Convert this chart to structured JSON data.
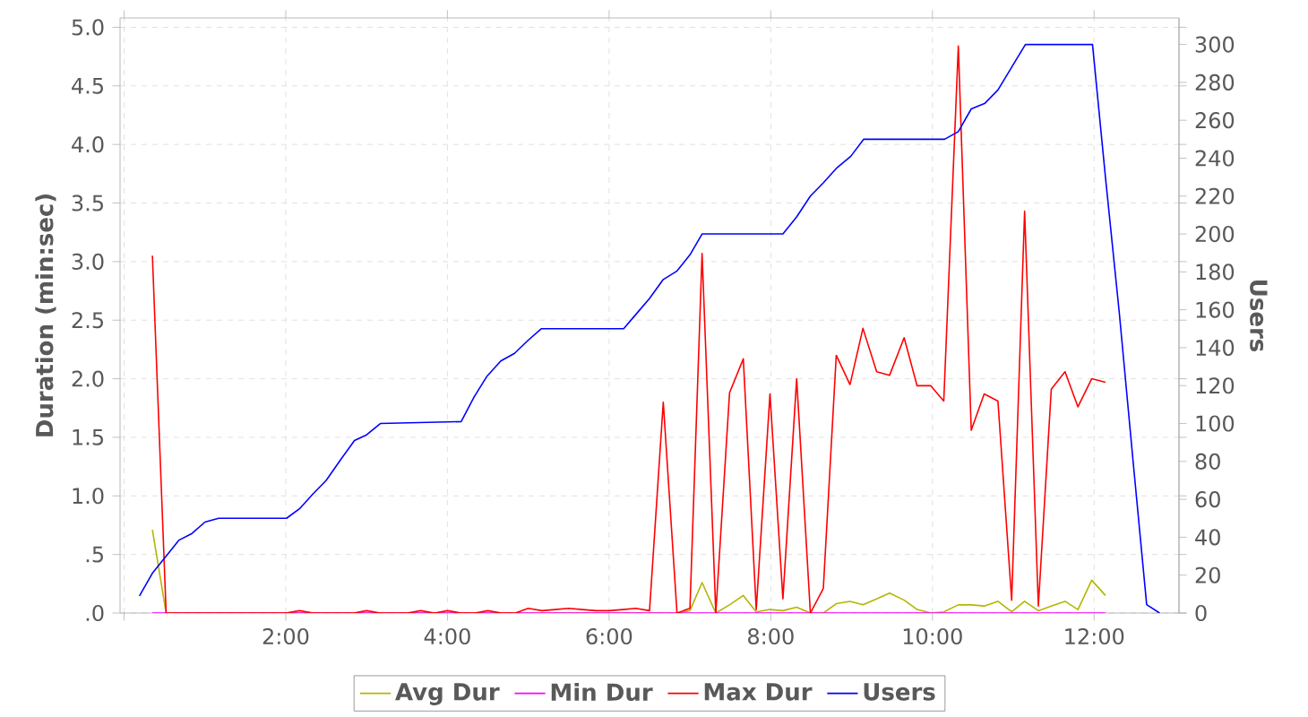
{
  "chart_data": {
    "type": "line",
    "ylabel": "Duration (min:sec)",
    "y2label": "Users",
    "xlim": [
      -0.05,
      13.05
    ],
    "xticks": [
      {
        "value": 0,
        "label": null
      },
      {
        "value": 2,
        "label": "2:00"
      },
      {
        "value": 4,
        "label": "4:00"
      },
      {
        "value": 6,
        "label": "6:00"
      },
      {
        "value": 8,
        "label": "8:00"
      },
      {
        "value": 10,
        "label": "10:00"
      },
      {
        "value": 12,
        "label": "12:00"
      }
    ],
    "ylim": [
      0,
      5.08
    ],
    "yticks": [
      {
        "value": 0,
        "label": ".0"
      },
      {
        "value": 0.5,
        "label": ".5"
      },
      {
        "value": 1,
        "label": "1.0"
      },
      {
        "value": 1.5,
        "label": "1.5"
      },
      {
        "value": 2,
        "label": "2.0"
      },
      {
        "value": 2.5,
        "label": "2.5"
      },
      {
        "value": 3,
        "label": "3.0"
      },
      {
        "value": 3.5,
        "label": "3.5"
      },
      {
        "value": 4,
        "label": "4.0"
      },
      {
        "value": 4.5,
        "label": "4.5"
      },
      {
        "value": 5,
        "label": "5.0"
      }
    ],
    "y2lim": [
      0,
      314
    ],
    "y2ticks": [
      0,
      20,
      40,
      60,
      80,
      100,
      120,
      140,
      160,
      180,
      200,
      220,
      240,
      260,
      280,
      300
    ],
    "grid": true,
    "legend": "bottom",
    "series": [
      {
        "name": "Avg Dur",
        "color": "#b5b500",
        "x": [
          0.35,
          0.52,
          6.84,
          7.0,
          7.15,
          7.32,
          7.49,
          7.66,
          7.82,
          7.99,
          8.15,
          8.32,
          8.49,
          8.65,
          8.81,
          8.98,
          9.14,
          9.31,
          9.47,
          9.65,
          9.81,
          9.98,
          10.14,
          10.32,
          10.48,
          10.64,
          10.81,
          10.98,
          11.14,
          11.31,
          11.47,
          11.64,
          11.8,
          11.97,
          12.14
        ],
        "values": [
          0.71,
          0,
          0,
          0.02,
          0.26,
          0,
          0.07,
          0.15,
          0.01,
          0.03,
          0.02,
          0.05,
          0,
          0,
          0.08,
          0.1,
          0.07,
          0.12,
          0.17,
          0.11,
          0.03,
          0,
          0.01,
          0.07,
          0.07,
          0.06,
          0.1,
          0.01,
          0.1,
          0.02,
          0.06,
          0.1,
          0.03,
          0.28,
          0.15
        ]
      },
      {
        "name": "Min Dur",
        "color": "#ff00ff",
        "x": [
          0.35,
          12.14
        ],
        "values": [
          0,
          0
        ]
      },
      {
        "name": "Max Dur",
        "color": "#ff0000",
        "x": [
          0.35,
          0.52,
          2.0,
          2.17,
          2.34,
          2.84,
          3.0,
          3.17,
          3.5,
          3.67,
          3.84,
          4.0,
          4.17,
          4.34,
          4.5,
          4.67,
          4.84,
          5.0,
          5.17,
          5.33,
          5.5,
          5.67,
          5.84,
          6.0,
          6.17,
          6.33,
          6.5,
          6.67,
          6.84,
          7.0,
          7.15,
          7.32,
          7.49,
          7.66,
          7.82,
          7.99,
          8.15,
          8.32,
          8.49,
          8.65,
          8.81,
          8.98,
          9.14,
          9.31,
          9.47,
          9.65,
          9.81,
          9.98,
          10.14,
          10.32,
          10.48,
          10.64,
          10.81,
          10.98,
          11.14,
          11.31,
          11.47,
          11.64,
          11.8,
          11.97,
          12.14
        ],
        "values": [
          3.05,
          0,
          0,
          0.02,
          0,
          0,
          0.02,
          0,
          0,
          0.02,
          0,
          0.02,
          0,
          0,
          0.02,
          0,
          0,
          0.04,
          0.02,
          0.03,
          0.04,
          0.03,
          0.02,
          0.02,
          0.03,
          0.04,
          0.02,
          1.8,
          0,
          0.04,
          3.07,
          0,
          1.88,
          2.17,
          0.03,
          1.87,
          0.12,
          2.0,
          0,
          0.21,
          2.2,
          1.95,
          2.43,
          2.06,
          2.03,
          2.35,
          1.94,
          1.94,
          1.81,
          4.84,
          1.56,
          1.87,
          1.81,
          0.11,
          3.43,
          0.06,
          1.91,
          2.06,
          1.76,
          2.0,
          1.97
        ]
      },
      {
        "name": "Users",
        "color": "#0000ff",
        "axis": "y2",
        "x": [
          0.19,
          0.35,
          0.52,
          0.68,
          0.84,
          1.0,
          1.17,
          2.01,
          2.17,
          2.34,
          2.5,
          2.68,
          2.85,
          3.0,
          3.17,
          4.17,
          4.33,
          4.49,
          4.66,
          4.83,
          5.0,
          5.16,
          6.18,
          6.34,
          6.5,
          6.67,
          6.84,
          7.0,
          7.15,
          8.15,
          8.32,
          8.49,
          8.65,
          8.82,
          8.99,
          9.15,
          10.15,
          10.32,
          10.48,
          10.65,
          10.81,
          10.98,
          11.15,
          11.98,
          12.14,
          12.31,
          12.48,
          12.65,
          12.81
        ],
        "values": [
          9,
          21,
          30,
          38.5,
          42,
          48,
          50,
          50,
          55,
          63,
          70,
          81,
          91,
          94,
          100,
          101,
          114,
          125,
          133,
          137,
          144,
          150,
          150,
          158,
          166,
          176,
          180.5,
          189,
          200,
          200,
          209,
          220,
          227,
          235,
          241,
          250,
          250,
          254,
          266,
          269,
          276,
          288,
          300,
          300,
          230,
          159,
          81,
          4.4,
          0
        ]
      }
    ]
  }
}
